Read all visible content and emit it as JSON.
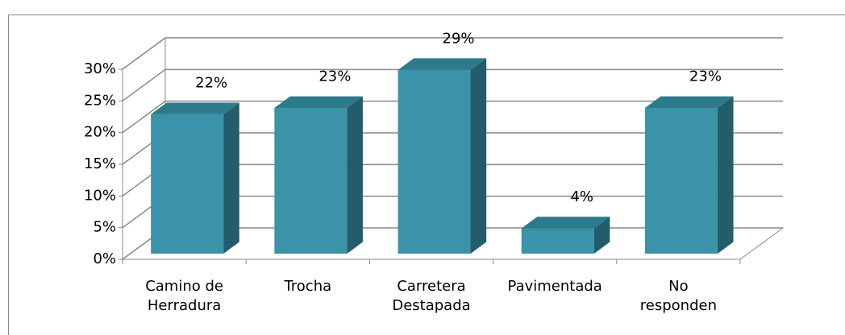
{
  "chart_data": {
    "type": "bar3d",
    "categories": [
      "Camino de\nHerradura",
      "Trocha",
      "Carretera\nDestapada",
      "Pavimentada",
      "No\nresponden"
    ],
    "values": [
      22,
      23,
      29,
      4,
      23
    ],
    "value_labels": [
      "22%",
      "23%",
      "29%",
      "4%",
      "23%"
    ],
    "color": "#3a93a8",
    "ylim": [
      0,
      30
    ],
    "yticks": [
      {
        "value": 0,
        "label": "0%"
      },
      {
        "value": 5,
        "label": "5%"
      },
      {
        "value": 10,
        "label": "10%"
      },
      {
        "value": 15,
        "label": "15%"
      },
      {
        "value": 20,
        "label": "20%"
      },
      {
        "value": 25,
        "label": "25%"
      },
      {
        "value": 30,
        "label": "30%"
      }
    ],
    "grid": true
  }
}
